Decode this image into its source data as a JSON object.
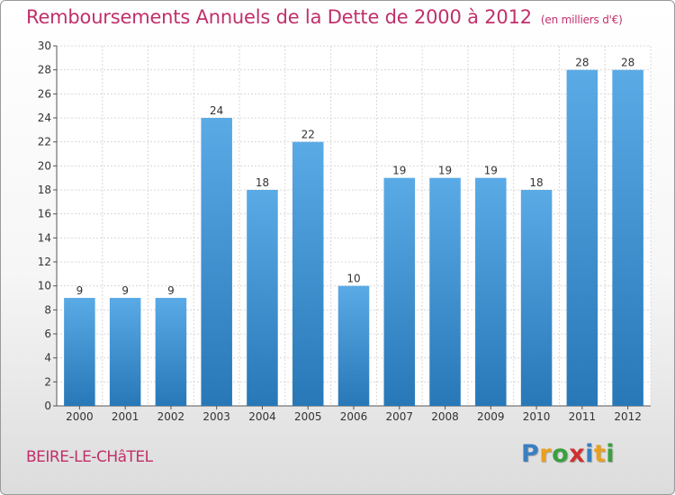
{
  "header": {
    "title": "Remboursements Annuels de la Dette de 2000 à 2012",
    "subtitle": "(en milliers d'€)"
  },
  "footer": {
    "commune": "BEIRE-LE-CHâTEL",
    "logo": [
      "P",
      "r",
      "o",
      "x",
      "i",
      "t",
      "i"
    ],
    "logo_colors": [
      "#3a7fc1",
      "#e8a020",
      "#3aa040",
      "#d03030",
      "#3a7fc1",
      "#e8a020",
      "#3aa040"
    ]
  },
  "chart_data": {
    "type": "bar",
    "categories": [
      "2000",
      "2001",
      "2002",
      "2003",
      "2004",
      "2005",
      "2006",
      "2007",
      "2008",
      "2009",
      "2010",
      "2011",
      "2012"
    ],
    "values": [
      9,
      9,
      9,
      24,
      18,
      22,
      10,
      19,
      19,
      19,
      18,
      28,
      28
    ],
    "data_labels": [
      "9",
      "9",
      "9",
      "24",
      "18",
      "22",
      "10",
      "19",
      "19",
      "19",
      "18",
      "28",
      "28"
    ],
    "ylim": [
      0,
      30
    ],
    "yticks": [
      0,
      2,
      4,
      6,
      8,
      10,
      12,
      14,
      16,
      18,
      20,
      22,
      24,
      26,
      28,
      30
    ],
    "grid": true,
    "bar_color_light": "#5aaae6",
    "bar_color_dark": "#2878b8"
  }
}
